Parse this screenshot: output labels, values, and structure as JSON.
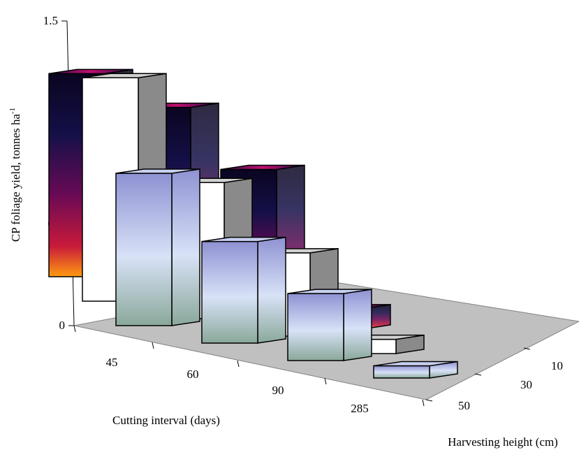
{
  "chart_data": {
    "type": "bar",
    "variant": "3d-grouped",
    "title": "",
    "ylabel": "CP foliage yield, tonnes ha",
    "ylabel_superscript": "-1",
    "xlabel": "Cutting interval (days)",
    "zlabel": "Harvesting height (cm)",
    "categories": [
      "45",
      "60",
      "90",
      "285"
    ],
    "ylim": [
      0,
      1.5
    ],
    "yticks": [
      "0",
      "0.5",
      "1",
      "1.5"
    ],
    "ytick_values": [
      0,
      0.5,
      1,
      1.5
    ],
    "series": [
      {
        "name": "10",
        "values": [
          1.0,
          0.92,
          0.7,
          0.1
        ]
      },
      {
        "name": "30",
        "values": [
          1.1,
          0.67,
          0.41,
          0.07
        ]
      },
      {
        "name": "50",
        "values": [
          0.75,
          0.5,
          0.33,
          0.06
        ]
      }
    ],
    "grid": false,
    "legend": "depth-axis"
  }
}
